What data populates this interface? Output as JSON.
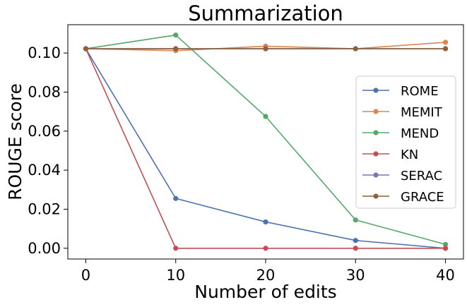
{
  "chart_data": {
    "type": "line",
    "title": "Summarization",
    "xlabel": "Number of edits",
    "ylabel": "ROUGE score",
    "x": [
      0,
      10,
      20,
      30,
      40
    ],
    "xticks": [
      "0",
      "10",
      "20",
      "30",
      "40"
    ],
    "yticks": [
      "0.00",
      "0.02",
      "0.04",
      "0.06",
      "0.08",
      "0.10"
    ],
    "ytick_values": [
      0.0,
      0.02,
      0.04,
      0.06,
      0.08,
      0.1
    ],
    "xlim": [
      -2,
      42
    ],
    "ylim": [
      -0.0055,
      0.1145
    ],
    "grid": false,
    "legend_position": "center-right",
    "series": [
      {
        "name": "ROME",
        "color": "#4c72b0",
        "values": [
          0.1022,
          0.0255,
          0.0135,
          0.004,
          0.0
        ]
      },
      {
        "name": "MEMIT",
        "color": "#dd8452",
        "values": [
          0.1022,
          0.1012,
          0.1035,
          0.1022,
          0.1055
        ]
      },
      {
        "name": "MEND",
        "color": "#55a868",
        "values": [
          0.1022,
          0.1092,
          0.0675,
          0.0145,
          0.002
        ]
      },
      {
        "name": "KN",
        "color": "#c44e52",
        "values": [
          0.1022,
          0.0,
          0.0,
          0.0,
          0.0
        ]
      },
      {
        "name": "SERAC",
        "color": "#8172b3",
        "values": [
          0.1022,
          0.1022,
          0.1022,
          0.1022,
          0.1022
        ]
      },
      {
        "name": "GRACE",
        "color": "#8c613c",
        "values": [
          0.1022,
          0.1022,
          0.1022,
          0.1022,
          0.1022
        ]
      }
    ]
  }
}
